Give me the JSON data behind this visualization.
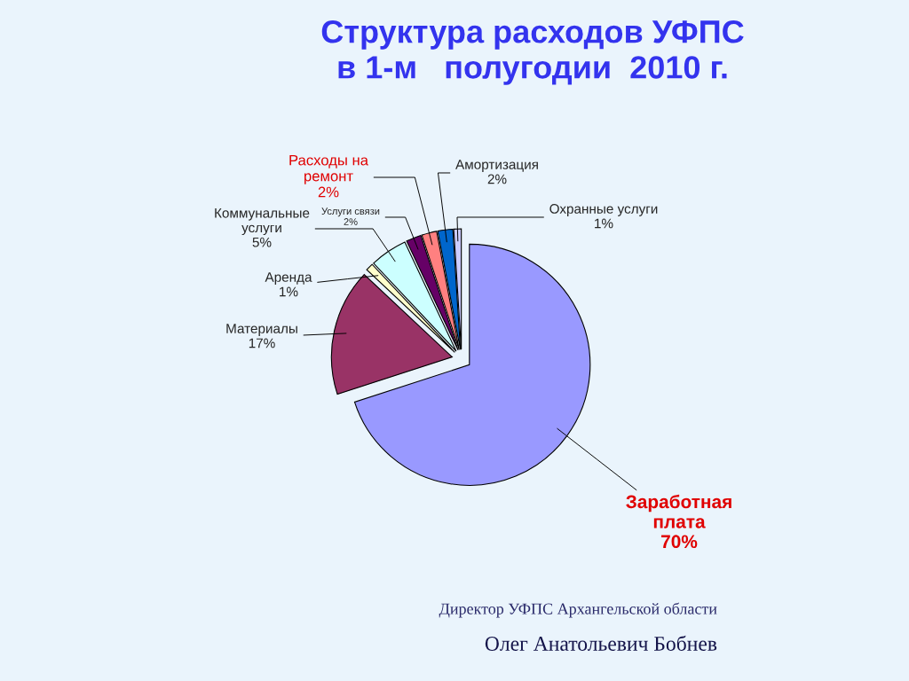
{
  "chart_data": {
    "type": "pie",
    "title": "Структура расходов УФПС\nв 1-м   полугодии  2010 г.",
    "categories": [
      "Заработная\nплата",
      "Материалы",
      "Аренда",
      "Коммунальные\nуслуги",
      "Услуги связи",
      "Расходы на\nремонт",
      "Амортизация",
      "Охранные услуги"
    ],
    "values": [
      70,
      17,
      1,
      5,
      2,
      2,
      2,
      1
    ],
    "colors": [
      "#9999ff",
      "#993366",
      "#ffffcc",
      "#ccffff",
      "#660066",
      "#ff8080",
      "#0066cc",
      "#ccccff"
    ],
    "value_labels": [
      "70%",
      "17%",
      "1%",
      "5%",
      "2%",
      "2%",
      "2%",
      "1%"
    ],
    "annotations": [
      "Директор УФПС Архангельской области",
      "Олег Анатольевич Бобнев"
    ]
  }
}
